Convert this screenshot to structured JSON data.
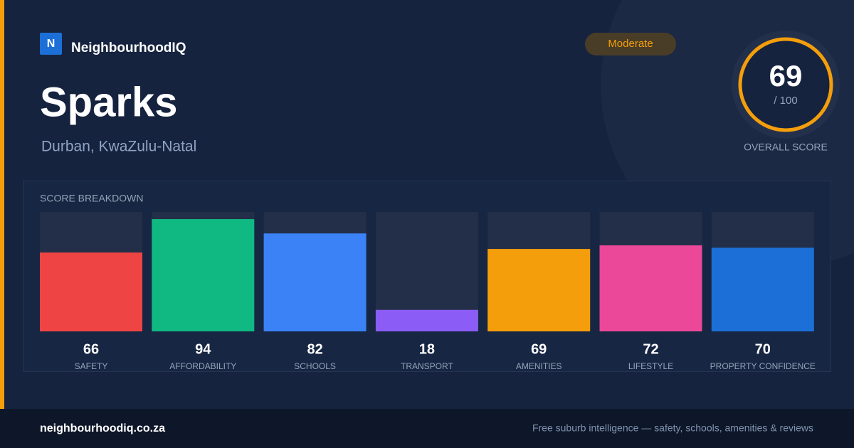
{
  "brand": {
    "logo": "N",
    "name": "NeighbourhoodIQ"
  },
  "badge": "Moderate",
  "title": "Sparks",
  "subtitle": "Durban, KwaZulu-Natal",
  "overall": {
    "score": 69,
    "max_label": "/ 100",
    "label": "OVERALL SCORE"
  },
  "chart_data": {
    "type": "bar",
    "title": "SCORE BREAKDOWN",
    "categories": [
      "SAFETY",
      "AFFORDABILITY",
      "SCHOOLS",
      "TRANSPORT",
      "AMENITIES",
      "LIFESTYLE",
      "PROPERTY CONFIDENCE"
    ],
    "values": [
      66,
      94,
      82,
      18,
      69,
      72,
      70
    ],
    "colors": [
      "#ef4444",
      "#10b981",
      "#3b82f6",
      "#8b5cf6",
      "#f59e0b",
      "#ec4899",
      "#1d6fd8"
    ],
    "ylim": [
      0,
      100
    ]
  },
  "footer": {
    "site": "neighbourhoodiq.co.za",
    "tagline": "Free suburb intelligence — safety, schools, amenities & reviews"
  }
}
